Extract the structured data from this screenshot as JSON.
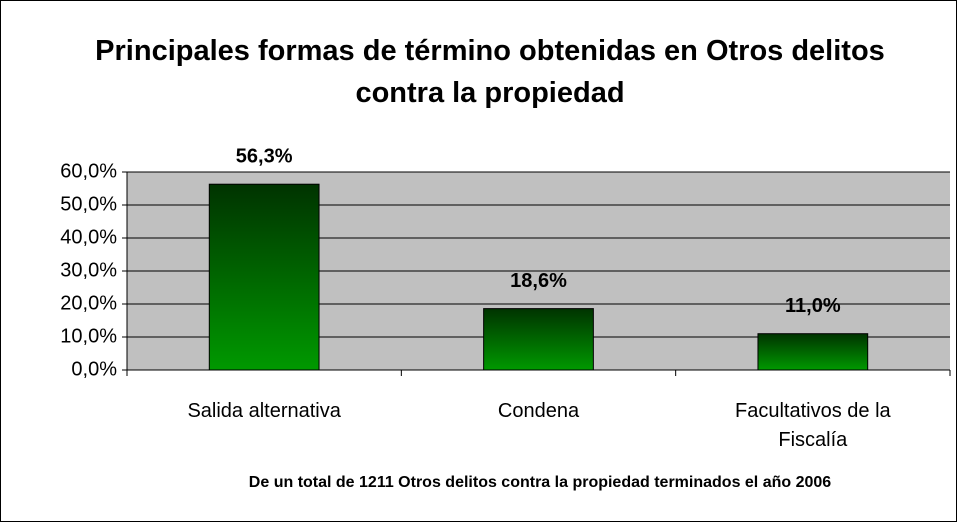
{
  "chart_data": {
    "type": "bar",
    "title": "Principales formas de término obtenidas en Otros delitos contra la propiedad",
    "categories": [
      "Salida alternativa",
      "Condena",
      "Facultativos de la Fiscalía"
    ],
    "values": [
      56.3,
      18.6,
      11.0
    ],
    "value_labels": [
      "56,3%",
      "18,6%",
      "11,0%"
    ],
    "color": "#007a00",
    "ylim": [
      0,
      60
    ],
    "yticks": [
      {
        "value": 0,
        "label": "0,0%"
      },
      {
        "value": 10,
        "label": "10,0%"
      },
      {
        "value": 20,
        "label": "20,0%"
      },
      {
        "value": 30,
        "label": "30,0%"
      },
      {
        "value": 40,
        "label": "40,0%"
      },
      {
        "value": 50,
        "label": "50,0%"
      },
      {
        "value": 60,
        "label": "60,0%"
      }
    ],
    "grid": true,
    "annotation": "De un total de 1211 Otros delitos contra la propiedad terminados el año 2006"
  }
}
